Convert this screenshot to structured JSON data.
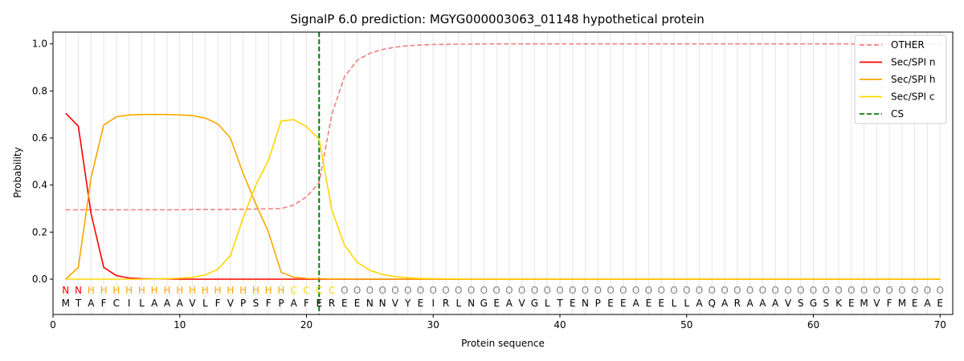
{
  "chart_data": {
    "type": "line",
    "title": "SignalP 6.0 prediction: MGYG000003063_01148 hypothetical protein",
    "xlabel": "Protein sequence",
    "ylabel": "Probability",
    "xlim": [
      0,
      71
    ],
    "ylim": [
      -0.15,
      1.05
    ],
    "xticks": [
      0,
      10,
      20,
      30,
      40,
      50,
      60,
      70
    ],
    "yticks": [
      0.0,
      0.2,
      0.4,
      0.6,
      0.8,
      1.0
    ],
    "xtick_labels": [
      "0",
      "10",
      "20",
      "30",
      "40",
      "50",
      "60",
      "70"
    ],
    "ytick_labels": [
      "0.0",
      "0.2",
      "0.4",
      "0.6",
      "0.8",
      "1.0"
    ],
    "grid": "vertical lines at each residue",
    "legend_position": "top-right",
    "sequence": "MTAFCILAAAVLFVPSFPAFEREENNVYEIRLNGEAVGLTENPEEAEELLAQARAAAVSGSKEMVFMEAE",
    "region_labels": "NNHHHHHHHHHHHHHHHHCCCCOOOOOOOOOOOOOOOOOOOOOOOOOOOOOOOOOOOOOOOOOOOOOOOOOO",
    "region_colors": {
      "N": "#ff0000",
      "H": "#ffa500",
      "C": "#ffd700",
      "O": "#808080"
    },
    "cleavage_site": 21,
    "series": [
      {
        "name": "OTHER",
        "color": "#f08080",
        "dash": "dashed",
        "values": [
          0.295,
          0.295,
          0.295,
          0.295,
          0.295,
          0.295,
          0.295,
          0.295,
          0.295,
          0.295,
          0.296,
          0.296,
          0.296,
          0.297,
          0.297,
          0.298,
          0.299,
          0.3,
          0.315,
          0.35,
          0.41,
          0.7,
          0.86,
          0.93,
          0.96,
          0.976,
          0.986,
          0.992,
          0.995,
          0.997,
          0.998,
          0.999,
          0.999,
          1.0,
          1.0,
          1.0,
          1.0,
          1.0,
          1.0,
          1.0,
          1.0,
          1.0,
          1.0,
          1.0,
          1.0,
          1.0,
          1.0,
          1.0,
          1.0,
          1.0,
          1.0,
          1.0,
          1.0,
          1.0,
          1.0,
          1.0,
          1.0,
          1.0,
          1.0,
          1.0,
          1.0,
          1.0,
          1.0,
          1.0,
          1.0,
          1.0,
          1.0,
          1.0,
          1.0,
          1.0
        ]
      },
      {
        "name": "Sec/SPI n",
        "color": "#ff0000",
        "dash": "solid",
        "values": [
          0.705,
          0.65,
          0.28,
          0.05,
          0.015,
          0.005,
          0.002,
          0.001,
          0.001,
          0.0,
          0.0,
          0.0,
          0.0,
          0.0,
          0.0,
          0.0,
          0.0,
          0.0,
          0.0,
          0.0,
          0.0,
          0.0,
          0.0,
          0.0,
          0.0,
          0.0,
          0.0,
          0.0,
          0.0,
          0.0,
          0.0,
          0.0,
          0.0,
          0.0,
          0.0,
          0.0,
          0.0,
          0.0,
          0.0,
          0.0,
          0.0,
          0.0,
          0.0,
          0.0,
          0.0,
          0.0,
          0.0,
          0.0,
          0.0,
          0.0,
          0.0,
          0.0,
          0.0,
          0.0,
          0.0,
          0.0,
          0.0,
          0.0,
          0.0,
          0.0,
          0.0,
          0.0,
          0.0,
          0.0,
          0.0,
          0.0,
          0.0,
          0.0,
          0.0,
          0.0
        ]
      },
      {
        "name": "Sec/SPI h",
        "color": "#ffa500",
        "dash": "solid",
        "values": [
          0.0,
          0.05,
          0.43,
          0.655,
          0.69,
          0.698,
          0.7,
          0.7,
          0.7,
          0.698,
          0.695,
          0.685,
          0.66,
          0.6,
          0.45,
          0.32,
          0.2,
          0.03,
          0.008,
          0.003,
          0.002,
          0.001,
          0.001,
          0.0,
          0.0,
          0.0,
          0.0,
          0.0,
          0.0,
          0.0,
          0.0,
          0.0,
          0.0,
          0.0,
          0.0,
          0.0,
          0.0,
          0.0,
          0.0,
          0.0,
          0.0,
          0.0,
          0.0,
          0.0,
          0.0,
          0.0,
          0.0,
          0.0,
          0.0,
          0.0,
          0.0,
          0.0,
          0.0,
          0.0,
          0.0,
          0.0,
          0.0,
          0.0,
          0.0,
          0.0,
          0.0,
          0.0,
          0.0,
          0.0,
          0.0,
          0.0,
          0.0,
          0.0,
          0.0,
          0.0
        ]
      },
      {
        "name": "Sec/SPI c",
        "color": "#ffd700",
        "dash": "solid",
        "values": [
          0.0,
          0.0,
          0.0,
          0.0,
          0.0,
          0.0,
          0.0,
          0.001,
          0.002,
          0.004,
          0.008,
          0.018,
          0.042,
          0.1,
          0.26,
          0.4,
          0.505,
          0.672,
          0.678,
          0.648,
          0.595,
          0.295,
          0.145,
          0.072,
          0.038,
          0.02,
          0.011,
          0.006,
          0.003,
          0.002,
          0.001,
          0.001,
          0.0,
          0.0,
          0.0,
          0.0,
          0.0,
          0.0,
          0.0,
          0.0,
          0.0,
          0.0,
          0.0,
          0.0,
          0.0,
          0.0,
          0.0,
          0.0,
          0.0,
          0.0,
          0.0,
          0.0,
          0.0,
          0.0,
          0.0,
          0.0,
          0.0,
          0.0,
          0.0,
          0.0,
          0.0,
          0.0,
          0.0,
          0.0,
          0.0,
          0.0,
          0.0,
          0.0,
          0.0,
          0.0
        ]
      }
    ],
    "legend_entries": [
      {
        "label": "OTHER",
        "color": "#f08080",
        "dash": "dashed"
      },
      {
        "label": "Sec/SPI n",
        "color": "#ff0000",
        "dash": "solid"
      },
      {
        "label": "Sec/SPI h",
        "color": "#ffa500",
        "dash": "solid"
      },
      {
        "label": "Sec/SPI c",
        "color": "#ffd700",
        "dash": "solid"
      },
      {
        "label": "CS",
        "color": "#008000",
        "dash": "dashed"
      }
    ]
  }
}
